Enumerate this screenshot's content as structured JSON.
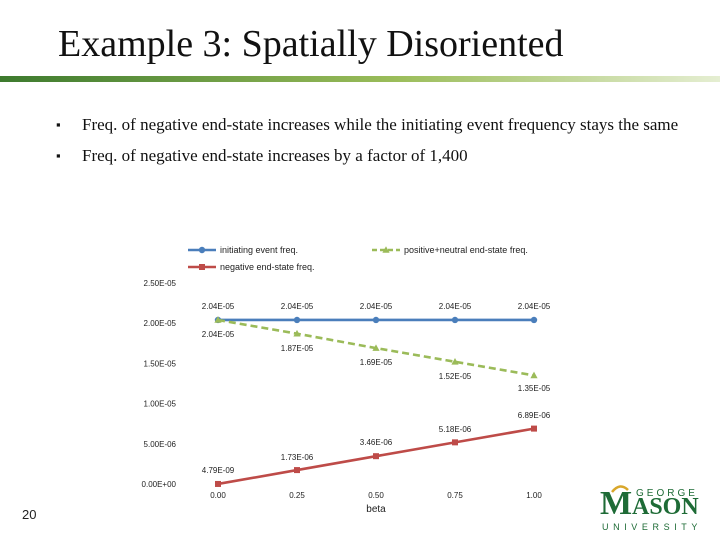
{
  "slide": {
    "title": "Example 3: Spatially Disoriented",
    "page_number": "20",
    "bullet_icon": "square-bullet",
    "bullets": [
      "Freq. of negative end-state increases while the initiating event frequency stays the same",
      "Freq. of negative end-state increases by a factor of 1,400"
    ]
  },
  "logo": {
    "line1": "GEORGE",
    "letter_m": "M",
    "rest": "ASON",
    "line3": "UNIVERSITY",
    "green": "#1e6b36",
    "gold": "#d9a72b"
  },
  "chart_data": {
    "type": "line",
    "categories": [
      "0.00",
      "0.25",
      "0.50",
      "0.75",
      "1.00"
    ],
    "xlabel": "beta",
    "ylabel": "",
    "ylim": [
      0,
      2.5e-05
    ],
    "yticks": [
      "0.00E+00",
      "5.00E-06",
      "1.00E-05",
      "1.50E-05",
      "2.00E-05",
      "2.50E-05"
    ],
    "grid": false,
    "legend_position": "top",
    "series": [
      {
        "name": "initiating event freq.",
        "color": "#4a7ebb",
        "marker": "circle",
        "values": [
          2.04e-05,
          2.04e-05,
          2.04e-05,
          2.04e-05,
          2.04e-05
        ],
        "labels": [
          "2.04E-05",
          "2.04E-05",
          "2.04E-05",
          "2.04E-05",
          "2.04E-05"
        ]
      },
      {
        "name": "positive+neutral end-state freq.",
        "color": "#9bbb59",
        "marker": "triangle",
        "dashed": true,
        "values": [
          2.04e-05,
          1.87e-05,
          1.69e-05,
          1.52e-05,
          1.35e-05
        ],
        "labels": [
          "2.04E-05",
          "1.87E-05",
          "1.69E-05",
          "1.52E-05",
          "1.35E-05"
        ]
      },
      {
        "name": "negative end-state freq.",
        "color": "#be4b48",
        "marker": "square",
        "values": [
          4.79e-09,
          1.73e-06,
          3.46e-06,
          5.18e-06,
          6.89e-06
        ],
        "labels": [
          "4.79E-09",
          "1.73E-06",
          "3.46E-06",
          "5.18E-06",
          "6.89E-06"
        ]
      }
    ]
  }
}
